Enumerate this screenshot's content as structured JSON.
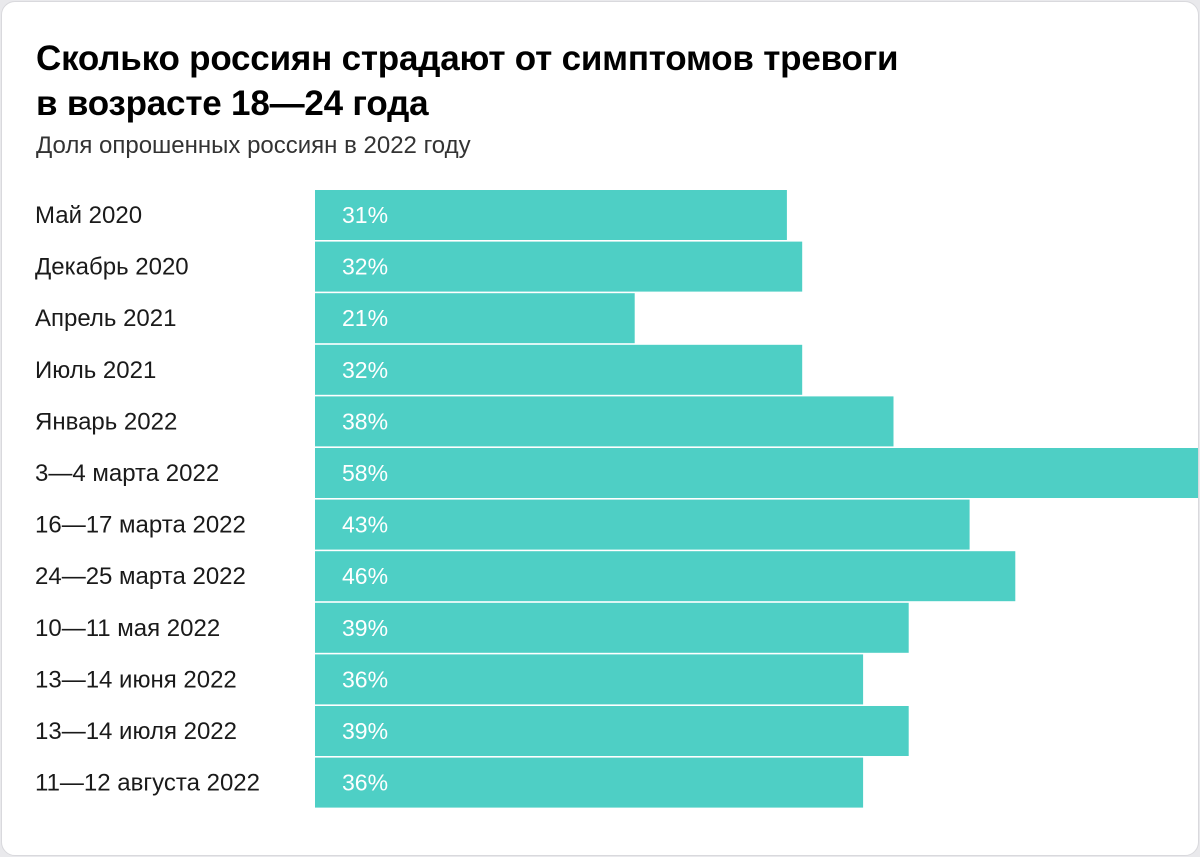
{
  "header": {
    "title_line1": "Сколько россиян страдают от симптомов тревоги",
    "title_line2": "в возрасте 18—24 года",
    "subtitle": "Доля опрошенных россиян в 2022 году"
  },
  "colors": {
    "bar": "#4ecfc5",
    "background": "#ffffff",
    "value_text": "#ffffff"
  },
  "chart_data": {
    "type": "bar",
    "orientation": "horizontal",
    "title": "Сколько россиян страдают от симптомов тревоги в возрасте 18—24 года",
    "subtitle": "Доля опрошенных россиян в 2022 году",
    "categories": [
      "Май 2020",
      "Декабрь 2020",
      "Апрель 2021",
      "Июль 2021",
      "Январь 2022",
      "3—4 марта 2022",
      "16—17 марта 2022",
      "24—25 марта 2022",
      "10—11 мая 2022",
      "13—14 июня 2022",
      "13—14 июля 2022",
      "11—12 августа 2022"
    ],
    "values": [
      31,
      32,
      21,
      32,
      38,
      58,
      43,
      46,
      39,
      36,
      39,
      36
    ],
    "value_labels": [
      "31%",
      "32%",
      "21%",
      "32%",
      "38%",
      "58%",
      "43%",
      "46%",
      "39%",
      "36%",
      "39%",
      "36%"
    ],
    "unit": "%",
    "xlim": [
      0,
      58
    ],
    "grid": false,
    "legend": false
  }
}
